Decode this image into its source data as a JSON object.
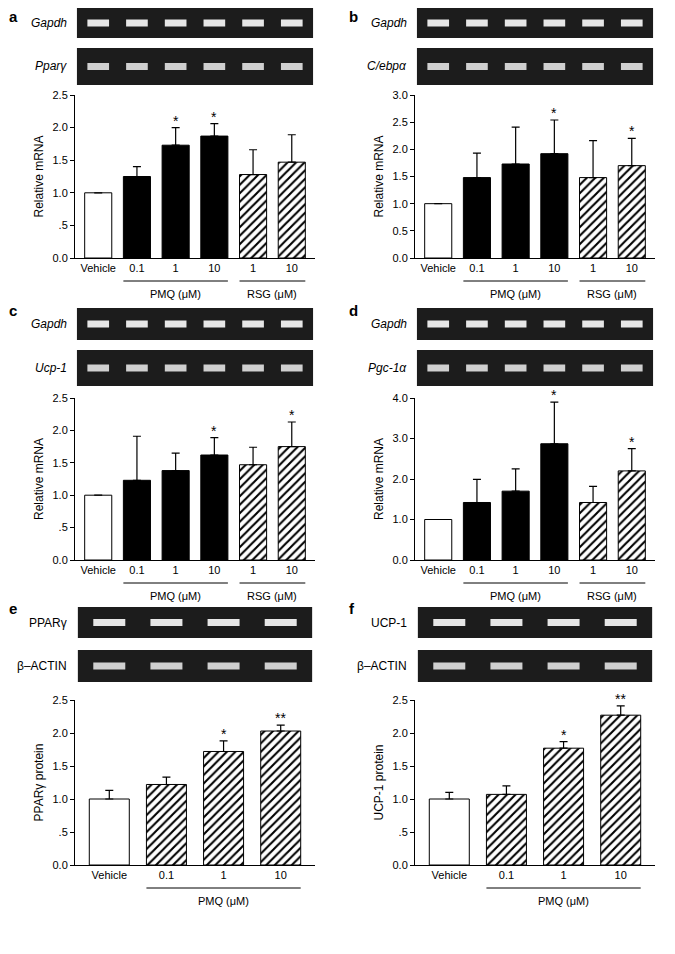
{
  "chart_data": [
    {
      "type": "bar",
      "panel": "a",
      "gels": [
        "Gapdh",
        "Pparγ"
      ],
      "y_label": "Relative mRNA",
      "categories": [
        "Vehicle",
        "0.1",
        "1",
        "10",
        "1",
        "10"
      ],
      "groups": [
        {
          "label": "PMQ (μM)",
          "from": 1,
          "to": 3
        },
        {
          "label": "RSG (μM)",
          "from": 4,
          "to": 5
        }
      ],
      "ylim": [
        0,
        2.5
      ],
      "yticks": [
        {
          "value": 0,
          "label": "0.0"
        },
        {
          "value": 0.5,
          "label": ".5"
        },
        {
          "value": 1,
          "label": "1.0"
        },
        {
          "value": 1.5,
          "label": "1.5"
        },
        {
          "value": 2,
          "label": "2.0"
        },
        {
          "value": 2.5,
          "label": "2.5"
        }
      ],
      "series": [
        {
          "color": "#ffffff",
          "marker": "solid",
          "values": [
            1.0,
            null,
            null,
            null,
            null,
            null
          ],
          "errors": [
            0,
            null,
            null,
            null,
            null,
            null
          ]
        },
        {
          "color": "#000000",
          "marker": "solid",
          "values": [
            null,
            1.25,
            1.73,
            1.87,
            null,
            null
          ],
          "errors": [
            null,
            0.15,
            0.27,
            0.19,
            null,
            null
          ]
        },
        {
          "color": "#ffffff",
          "marker": "hatched",
          "values": [
            null,
            null,
            null,
            null,
            1.28,
            1.47
          ],
          "errors": [
            null,
            null,
            null,
            null,
            0.38,
            0.42
          ]
        }
      ],
      "annotations": [
        {
          "x": 2,
          "text": "*"
        },
        {
          "x": 3,
          "text": "*"
        }
      ]
    },
    {
      "type": "bar",
      "panel": "b",
      "gels": [
        "Gapdh",
        "C/ebpα"
      ],
      "y_label": "Relative mRNA",
      "categories": [
        "Vehicle",
        "0.1",
        "1",
        "10",
        "1",
        "10"
      ],
      "groups": [
        {
          "label": "PMQ (μM)",
          "from": 1,
          "to": 3
        },
        {
          "label": "RSG (μM)",
          "from": 4,
          "to": 5
        }
      ],
      "ylim": [
        0,
        3
      ],
      "yticks": [
        {
          "value": 0,
          "label": "0.0"
        },
        {
          "value": 0.5,
          "label": "0.5"
        },
        {
          "value": 1,
          "label": "1.0"
        },
        {
          "value": 1.5,
          "label": "1.5"
        },
        {
          "value": 2,
          "label": "2.0"
        },
        {
          "value": 2.5,
          "label": "2.5"
        },
        {
          "value": 3,
          "label": "3.0"
        }
      ],
      "series": [
        {
          "color": "#ffffff",
          "marker": "solid",
          "values": [
            1.0,
            null,
            null,
            null,
            null,
            null
          ],
          "errors": [
            0,
            null,
            null,
            null,
            null,
            null
          ]
        },
        {
          "color": "#000000",
          "marker": "solid",
          "values": [
            null,
            1.48,
            1.73,
            1.92,
            null,
            null
          ],
          "errors": [
            null,
            0.45,
            0.68,
            0.62,
            null,
            null
          ]
        },
        {
          "color": "#ffffff",
          "marker": "hatched",
          "values": [
            null,
            null,
            null,
            null,
            1.48,
            1.7
          ],
          "errors": [
            null,
            null,
            null,
            null,
            0.68,
            0.5
          ]
        }
      ],
      "annotations": [
        {
          "x": 3,
          "text": "*"
        },
        {
          "x": 5,
          "text": "*"
        }
      ]
    },
    {
      "type": "bar",
      "panel": "c",
      "gels": [
        "Gapdh",
        "Ucp-1"
      ],
      "y_label": "Relative mRNA",
      "categories": [
        "Vehicle",
        "0.1",
        "1",
        "10",
        "1",
        "10"
      ],
      "groups": [
        {
          "label": "PMQ (μM)",
          "from": 1,
          "to": 3
        },
        {
          "label": "RSG (μM)",
          "from": 4,
          "to": 5
        }
      ],
      "ylim": [
        0,
        2.5
      ],
      "yticks": [
        {
          "value": 0,
          "label": "0.0"
        },
        {
          "value": 0.5,
          "label": ".5"
        },
        {
          "value": 1,
          "label": "1.0"
        },
        {
          "value": 1.5,
          "label": "1.5"
        },
        {
          "value": 2,
          "label": "2.0"
        },
        {
          "value": 2.5,
          "label": "2.5"
        }
      ],
      "series": [
        {
          "color": "#ffffff",
          "marker": "solid",
          "values": [
            1.0,
            null,
            null,
            null,
            null,
            null
          ],
          "errors": [
            0,
            null,
            null,
            null,
            null,
            null
          ]
        },
        {
          "color": "#000000",
          "marker": "solid",
          "values": [
            null,
            1.23,
            1.38,
            1.62,
            null,
            null
          ],
          "errors": [
            null,
            0.68,
            0.27,
            0.27,
            null,
            null
          ]
        },
        {
          "color": "#ffffff",
          "marker": "hatched",
          "values": [
            null,
            null,
            null,
            null,
            1.47,
            1.75
          ],
          "errors": [
            null,
            null,
            null,
            null,
            0.27,
            0.38
          ]
        }
      ],
      "annotations": [
        {
          "x": 3,
          "text": "*"
        },
        {
          "x": 5,
          "text": "*"
        }
      ]
    },
    {
      "type": "bar",
      "panel": "d",
      "gels": [
        "Gapdh",
        "Pgc-1α"
      ],
      "y_label": "Relative mRNA",
      "categories": [
        "Vehicle",
        "0.1",
        "1",
        "10",
        "1",
        "10"
      ],
      "groups": [
        {
          "label": "PMQ (μM)",
          "from": 1,
          "to": 3
        },
        {
          "label": "RSG (μM)",
          "from": 4,
          "to": 5
        }
      ],
      "ylim": [
        0,
        4
      ],
      "yticks": [
        {
          "value": 0,
          "label": "0.0"
        },
        {
          "value": 1,
          "label": "1.0"
        },
        {
          "value": 2,
          "label": "2.0"
        },
        {
          "value": 3,
          "label": "3.0"
        },
        {
          "value": 4,
          "label": "4.0"
        }
      ],
      "series": [
        {
          "color": "#ffffff",
          "marker": "solid",
          "values": [
            1.0,
            null,
            null,
            null,
            null,
            null
          ],
          "errors": [
            0,
            null,
            null,
            null,
            null,
            null
          ]
        },
        {
          "color": "#000000",
          "marker": "solid",
          "values": [
            null,
            1.42,
            1.7,
            2.87,
            null,
            null
          ],
          "errors": [
            null,
            0.57,
            0.55,
            1.03,
            null,
            null
          ]
        },
        {
          "color": "#ffffff",
          "marker": "hatched",
          "values": [
            null,
            null,
            null,
            null,
            1.42,
            2.2
          ],
          "errors": [
            null,
            null,
            null,
            null,
            0.4,
            0.55
          ]
        }
      ],
      "annotations": [
        {
          "x": 3,
          "text": "*"
        },
        {
          "x": 5,
          "text": "*"
        }
      ]
    },
    {
      "type": "bar",
      "panel": "e",
      "gels": [
        "PPARγ",
        "β–ACTIN"
      ],
      "y_label": "PPARγ protein",
      "categories": [
        "Vehicle",
        "0.1",
        "1",
        "10"
      ],
      "groups": [
        {
          "label": "PMQ (μM)",
          "from": 1,
          "to": 3
        }
      ],
      "ylim": [
        0,
        2.5
      ],
      "yticks": [
        {
          "value": 0,
          "label": "0.0"
        },
        {
          "value": 0.5,
          "label": ".5"
        },
        {
          "value": 1,
          "label": "1.0"
        },
        {
          "value": 1.5,
          "label": "1.5"
        },
        {
          "value": 2,
          "label": "2.0"
        },
        {
          "value": 2.5,
          "label": "2.5"
        }
      ],
      "series": [
        {
          "color": "#ffffff",
          "marker": "solid",
          "values": [
            1.0,
            null,
            null,
            null
          ],
          "errors": [
            0.13,
            null,
            null,
            null
          ]
        },
        {
          "color": "#ffffff",
          "marker": "hatched",
          "values": [
            null,
            1.22,
            1.72,
            2.03
          ],
          "errors": [
            null,
            0.11,
            0.16,
            0.09
          ]
        }
      ],
      "annotations": [
        {
          "x": 2,
          "text": "*"
        },
        {
          "x": 3,
          "text": "**"
        }
      ]
    },
    {
      "type": "bar",
      "panel": "f",
      "gels": [
        "UCP-1",
        "β–ACTIN"
      ],
      "y_label": "UCP-1 protein",
      "categories": [
        "Vehicle",
        "0.1",
        "1",
        "10"
      ],
      "groups": [
        {
          "label": "PMQ (μM)",
          "from": 1,
          "to": 3
        }
      ],
      "ylim": [
        0,
        2.5
      ],
      "yticks": [
        {
          "value": 0,
          "label": "0.0"
        },
        {
          "value": 0.5,
          "label": ".5"
        },
        {
          "value": 1,
          "label": "1.0"
        },
        {
          "value": 1.5,
          "label": "1.5"
        },
        {
          "value": 2,
          "label": "2.0"
        },
        {
          "value": 2.5,
          "label": "2.5"
        }
      ],
      "series": [
        {
          "color": "#ffffff",
          "marker": "solid",
          "values": [
            1.0,
            null,
            null,
            null
          ],
          "errors": [
            0.1,
            null,
            null,
            null
          ]
        },
        {
          "color": "#ffffff",
          "marker": "hatched",
          "values": [
            null,
            1.07,
            1.77,
            2.27
          ],
          "errors": [
            null,
            0.13,
            0.1,
            0.14
          ]
        }
      ],
      "annotations": [
        {
          "x": 2,
          "text": "*"
        },
        {
          "x": 3,
          "text": "**"
        }
      ]
    }
  ]
}
